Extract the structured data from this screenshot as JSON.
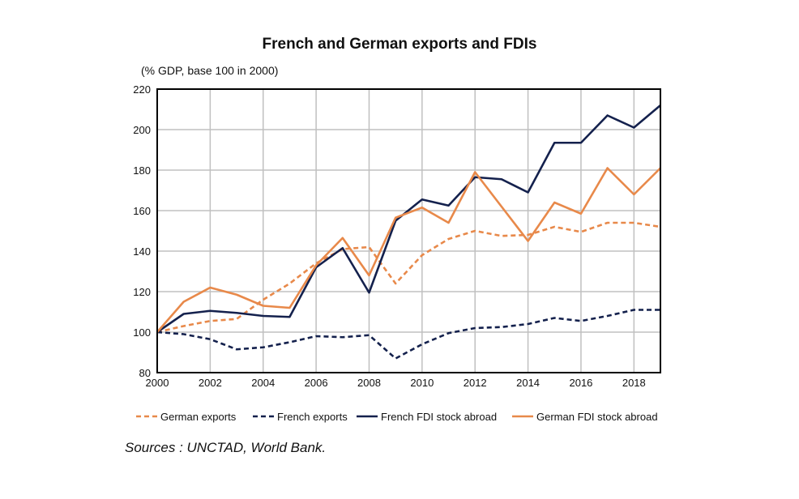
{
  "chart_data": {
    "type": "line",
    "title": "French and German exports and FDIs",
    "ylabel": "(% GDP, base 100 in 2000)",
    "xlabel": "",
    "x": [
      2000,
      2001,
      2002,
      2003,
      2004,
      2005,
      2006,
      2007,
      2008,
      2009,
      2010,
      2011,
      2012,
      2013,
      2014,
      2015,
      2016,
      2017,
      2018,
      2019
    ],
    "xticks": [
      2000,
      2002,
      2004,
      2006,
      2008,
      2010,
      2012,
      2014,
      2016,
      2018
    ],
    "yticks": [
      80,
      100,
      120,
      140,
      160,
      180,
      200,
      220
    ],
    "xlim": [
      2000,
      2019
    ],
    "ylim": [
      80,
      220
    ],
    "grid": true,
    "legend_position": "bottom",
    "series": [
      {
        "name": "German exports",
        "color": "#E8894A",
        "dash": true,
        "values": [
          100,
          103,
          105.5,
          106.5,
          116,
          124,
          134,
          141,
          142,
          124,
          138,
          146,
          150,
          147.5,
          148,
          152,
          149.5,
          154,
          154,
          152
        ]
      },
      {
        "name": "French exports",
        "color": "#14214D",
        "dash": true,
        "values": [
          100,
          99,
          96.5,
          91.5,
          92.5,
          95,
          98,
          97.5,
          98.5,
          87,
          94,
          99.5,
          102,
          102.5,
          104,
          107,
          105.5,
          108,
          111,
          111
        ]
      },
      {
        "name": "French FDI stock abroad",
        "color": "#14214D",
        "dash": false,
        "values": [
          100,
          109,
          110.5,
          109.5,
          108,
          107.5,
          132,
          141.5,
          119.5,
          155,
          165.5,
          162.5,
          176.5,
          175.5,
          169,
          193.5,
          193.5,
          207,
          201,
          212
        ]
      },
      {
        "name": "German FDI stock abroad",
        "color": "#E8894A",
        "dash": false,
        "values": [
          100,
          115,
          122,
          118.5,
          113,
          112,
          133,
          146.5,
          128,
          156.5,
          161.5,
          154,
          179,
          162,
          145,
          164,
          158.5,
          181,
          168,
          181
        ]
      }
    ]
  },
  "sources": "Sources : UNCTAD, World Bank."
}
